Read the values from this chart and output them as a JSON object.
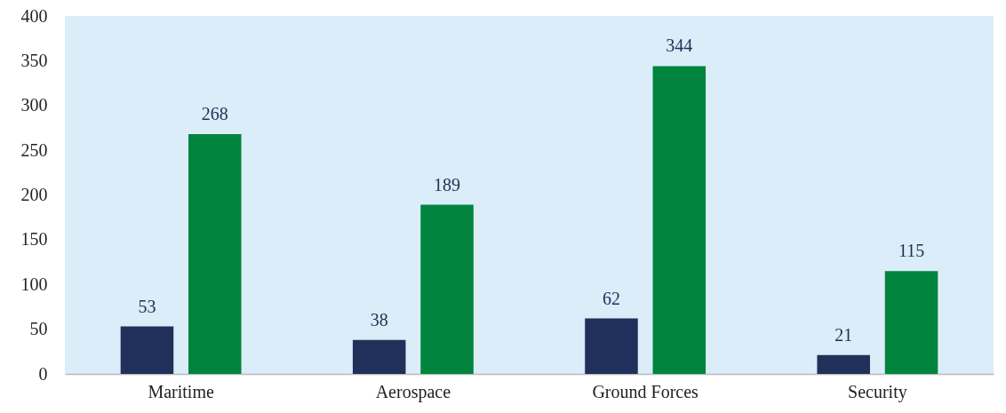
{
  "chart_data": {
    "type": "bar",
    "categories": [
      "Maritime",
      "Aerospace",
      "Ground Forces",
      "Security"
    ],
    "series": [
      {
        "color": "#21305a",
        "values": [
          53,
          38,
          62,
          21
        ]
      },
      {
        "color": "#00843d",
        "values": [
          268,
          189,
          344,
          115
        ]
      }
    ],
    "ylim": [
      0,
      400
    ],
    "yticks": [
      0,
      50,
      100,
      150,
      200,
      250,
      300,
      350,
      400
    ],
    "grid": false,
    "data_labels": true
  }
}
